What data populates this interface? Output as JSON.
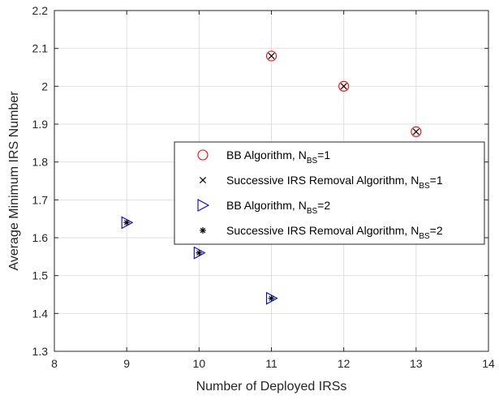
{
  "chart_data": {
    "type": "scatter",
    "title": "",
    "xlabel": "Number of Deployed IRSs",
    "ylabel": "Average Minimum IRS Number",
    "xlim": [
      8,
      14
    ],
    "ylim": [
      1.3,
      2.2
    ],
    "xticks": [
      "8",
      "9",
      "10",
      "11",
      "12",
      "13",
      "14"
    ],
    "yticks": [
      "1.3",
      "1.4",
      "1.5",
      "1.6",
      "1.7",
      "1.8",
      "1.9",
      "2",
      "2.1",
      "2.2"
    ],
    "grid": true,
    "legend_position": "center-right",
    "series": [
      {
        "legend": {
          "main": "BB Algorithm, N",
          "sub": "BS",
          "tail": "=1"
        },
        "marker": "circle",
        "color": "#ff0000",
        "x": [
          11,
          12,
          13
        ],
        "y": [
          2.08,
          2.0,
          1.88
        ]
      },
      {
        "legend": {
          "main": "Successive IRS Removal Algorithm, N",
          "sub": "BS",
          "tail": "=1"
        },
        "marker": "x",
        "color": "#000000",
        "x": [
          11,
          12,
          13
        ],
        "y": [
          2.08,
          2.0,
          1.88
        ]
      },
      {
        "legend": {
          "main": "BB Algorithm, N",
          "sub": "BS",
          "tail": "=2"
        },
        "marker": "triangle-right",
        "color": "#0000ff",
        "x": [
          9,
          10,
          11
        ],
        "y": [
          1.64,
          1.56,
          1.44
        ]
      },
      {
        "legend": {
          "main": "Successive IRS Removal Algorithm, N",
          "sub": "BS",
          "tail": "=2"
        },
        "marker": "asterisk",
        "color": "#000000",
        "x": [
          9,
          10,
          11
        ],
        "y": [
          1.64,
          1.56,
          1.44
        ]
      }
    ]
  }
}
